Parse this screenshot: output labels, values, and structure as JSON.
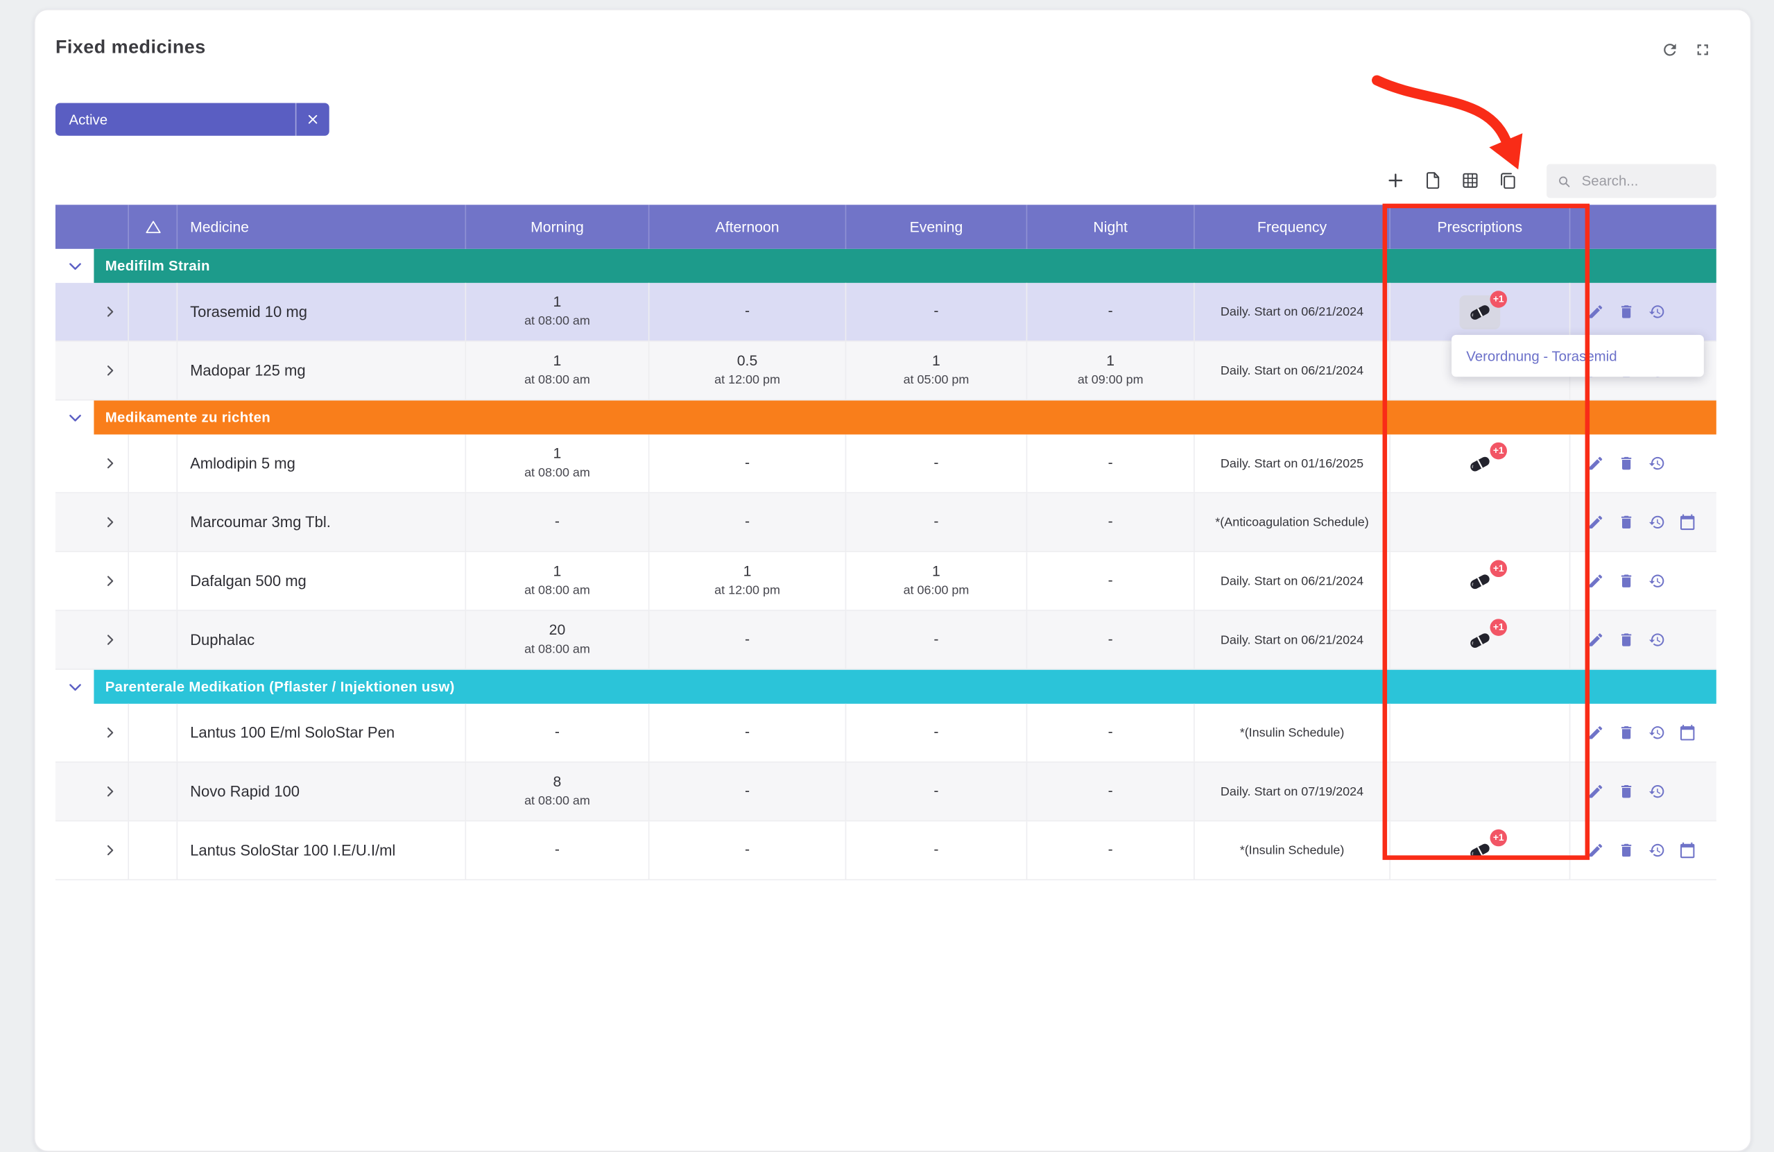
{
  "page": {
    "title": "Fixed medicines"
  },
  "filter": {
    "label": "Active"
  },
  "toolbar": {
    "search_placeholder": "Search..."
  },
  "tooltip": {
    "text": "Verordnung - Torasemid"
  },
  "colors": {
    "header_bg": "#7174c8",
    "chip_bg": "#5a5ec2",
    "row_highlight": "#dbdcf4",
    "stripe": "#f6f6f8",
    "annotation_red": "#f92c17",
    "badge_red": "#f25565",
    "action_icon": "#6f73c8",
    "tooltip_link": "#6b70c9"
  },
  "icons": {
    "refresh-icon": "circular-arrow",
    "fullscreen-icon": "expand-corners",
    "close-icon": "x",
    "plus-icon": "+",
    "file-export-icon": "document",
    "table-grid-icon": "grid",
    "copy-icon": "overlapping-pages",
    "search-icon": "magnifier",
    "warning-icon": "triangle-outline",
    "chevron-right-icon": "expand-row-arrow",
    "chevron-down-icon": "collapse-group-arrow",
    "pencil-icon": "edit-pencil",
    "trash-icon": "trash-can",
    "history-icon": "clock-with-arrow",
    "calendar-icon": "calendar",
    "pill-icon": "capsule"
  },
  "table": {
    "headers": [
      {
        "label": ""
      },
      {
        "icon": "warning"
      },
      {
        "label": "Medicine"
      },
      {
        "label": "Morning"
      },
      {
        "label": "Afternoon"
      },
      {
        "label": "Evening"
      },
      {
        "label": "Night"
      },
      {
        "label": "Frequency"
      },
      {
        "label": "Prescriptions"
      },
      {
        "label": ""
      }
    ],
    "groups": [
      {
        "name": "Medifilm Strain",
        "color": "#1d9b8b",
        "rows": [
          {
            "medicine": "Torasemid 10 mg",
            "morning": {
              "dose": "1",
              "time": "at 08:00 am"
            },
            "afternoon": {
              "dose": "-"
            },
            "evening": {
              "dose": "-"
            },
            "night": {
              "dose": "-"
            },
            "frequency": "Daily. Start on 06/21/2024",
            "prescriptions": {
              "badge": "+1",
              "hovered": true
            },
            "actions": [
              "edit",
              "delete",
              "history"
            ],
            "highlighted": true
          },
          {
            "medicine": "Madopar 125 mg",
            "morning": {
              "dose": "1",
              "time": "at 08:00 am"
            },
            "afternoon": {
              "dose": "0.5",
              "time": "at 12:00 pm"
            },
            "evening": {
              "dose": "1",
              "time": "at 05:00 pm"
            },
            "night": {
              "dose": "1",
              "time": "at 09:00 pm"
            },
            "frequency": "Daily. Start on 06/21/2024",
            "prescriptions": null,
            "actions": [
              "edit",
              "delete",
              "history"
            ]
          }
        ]
      },
      {
        "name": "Medikamente zu richten",
        "color": "#f97e1b",
        "rows": [
          {
            "medicine": "Amlodipin 5 mg",
            "morning": {
              "dose": "1",
              "time": "at 08:00 am"
            },
            "afternoon": {
              "dose": "-"
            },
            "evening": {
              "dose": "-"
            },
            "night": {
              "dose": "-"
            },
            "frequency": "Daily. Start on 01/16/2025",
            "prescriptions": {
              "badge": "+1"
            },
            "actions": [
              "edit",
              "delete",
              "history"
            ]
          },
          {
            "medicine": "Marcoumar 3mg Tbl.",
            "morning": {
              "dose": "-"
            },
            "afternoon": {
              "dose": "-"
            },
            "evening": {
              "dose": "-"
            },
            "night": {
              "dose": "-"
            },
            "frequency": "*(Anticoagulation Schedule)",
            "prescriptions": null,
            "actions": [
              "edit",
              "delete",
              "history",
              "calendar"
            ]
          },
          {
            "medicine": "Dafalgan 500 mg",
            "morning": {
              "dose": "1",
              "time": "at 08:00 am"
            },
            "afternoon": {
              "dose": "1",
              "time": "at 12:00 pm"
            },
            "evening": {
              "dose": "1",
              "time": "at 06:00 pm"
            },
            "night": {
              "dose": "-"
            },
            "frequency": "Daily. Start on 06/21/2024",
            "prescriptions": {
              "badge": "+1"
            },
            "actions": [
              "edit",
              "delete",
              "history"
            ]
          },
          {
            "medicine": "Duphalac",
            "morning": {
              "dose": "20",
              "time": "at 08:00 am"
            },
            "afternoon": {
              "dose": "-"
            },
            "evening": {
              "dose": "-"
            },
            "night": {
              "dose": "-"
            },
            "frequency": "Daily. Start on 06/21/2024",
            "prescriptions": {
              "badge": "+1"
            },
            "actions": [
              "edit",
              "delete",
              "history"
            ]
          }
        ]
      },
      {
        "name": "Parenterale Medikation (Pflaster / Injektionen usw)",
        "color": "#2bc4d9",
        "rows": [
          {
            "medicine": "Lantus 100 E/ml SoloStar Pen",
            "morning": {
              "dose": "-"
            },
            "afternoon": {
              "dose": "-"
            },
            "evening": {
              "dose": "-"
            },
            "night": {
              "dose": "-"
            },
            "frequency": "*(Insulin Schedule)",
            "prescriptions": null,
            "actions": [
              "edit",
              "delete",
              "history",
              "calendar"
            ]
          },
          {
            "medicine": "Novo Rapid 100",
            "morning": {
              "dose": "8",
              "time": "at 08:00 am"
            },
            "afternoon": {
              "dose": "-"
            },
            "evening": {
              "dose": "-"
            },
            "night": {
              "dose": "-"
            },
            "frequency": "Daily. Start on 07/19/2024",
            "prescriptions": null,
            "actions": [
              "edit",
              "delete",
              "history"
            ]
          },
          {
            "medicine": "Lantus SoloStar 100 I.E/U.I/ml",
            "morning": {
              "dose": "-"
            },
            "afternoon": {
              "dose": "-"
            },
            "evening": {
              "dose": "-"
            },
            "night": {
              "dose": "-"
            },
            "frequency": "*(Insulin Schedule)",
            "prescriptions": {
              "badge": "+1"
            },
            "actions": [
              "edit",
              "delete",
              "history",
              "calendar"
            ]
          }
        ]
      }
    ]
  }
}
